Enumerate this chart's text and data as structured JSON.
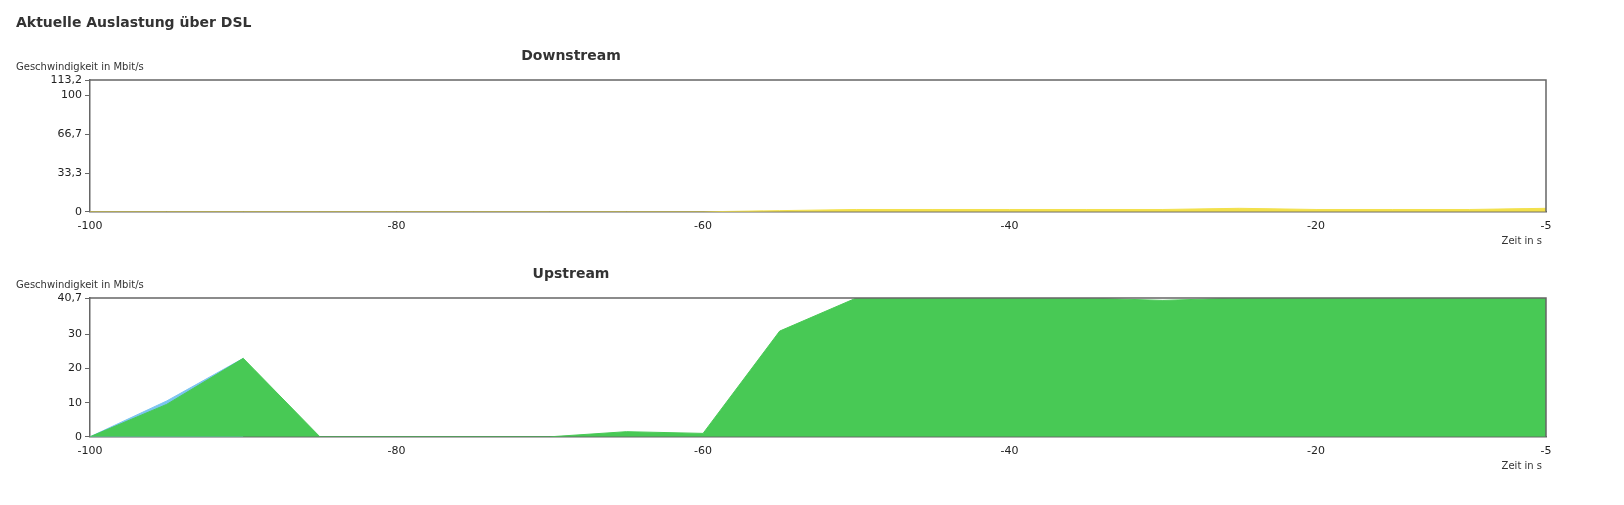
{
  "chart_data": [
    {
      "type": "area",
      "title": "Downstream",
      "annotations": [
        "Aktuelle Auslastung über DSL"
      ],
      "ylabel": "Geschwindigkeit in Mbit/s",
      "xlabel": "Zeit in s",
      "x": [
        -100,
        -95,
        -90,
        -85,
        -80,
        -75,
        -70,
        -65,
        -60,
        -55,
        -50,
        -45,
        -40,
        -35,
        -30,
        -25,
        -20,
        -15,
        -10,
        -5
      ],
      "series": [
        {
          "color": "#f2e04c",
          "values": [
            0,
            0,
            0,
            0,
            0,
            0,
            0,
            0,
            0,
            1,
            2,
            2,
            2,
            2,
            2,
            3,
            2,
            2,
            2,
            3
          ]
        }
      ],
      "xlim": [
        -100,
        -5
      ],
      "xticks": [
        -100,
        -80,
        -60,
        -40,
        -20,
        -5
      ],
      "ylim": [
        0,
        113.2
      ],
      "yticks": [
        0,
        {
          "value": 33.3,
          "label": "33,3"
        },
        {
          "value": 66.7,
          "label": "66,7"
        },
        100,
        {
          "value": 113.2,
          "label": "113,2"
        }
      ]
    },
    {
      "type": "area",
      "title": "Upstream",
      "ylabel": "Geschwindigkeit in Mbit/s",
      "xlabel": "Zeit in s",
      "x": [
        -100,
        -95,
        -90,
        -85,
        -80,
        -75,
        -70,
        -65,
        -60,
        -55,
        -50,
        -45,
        -40,
        -35,
        -30,
        -25,
        -20,
        -15,
        -10,
        -5
      ],
      "series": [
        {
          "color": "#48c955",
          "values": [
            0,
            9.5,
            23,
            0,
            0,
            0,
            0,
            1.5,
            1,
            31,
            40.7,
            40.7,
            40.7,
            40.7,
            40,
            40.7,
            40.7,
            40.7,
            40.7,
            40.7
          ]
        },
        {
          "color": "#7cc4f0",
          "values": [
            0,
            10.5,
            23,
            null,
            null,
            null,
            null,
            null,
            null,
            null,
            null,
            null,
            null,
            null,
            null,
            null,
            null,
            null,
            null,
            null
          ]
        }
      ],
      "xlim": [
        -100,
        -5
      ],
      "xticks": [
        -100,
        -80,
        -60,
        -40,
        -20,
        -5
      ],
      "ylim": [
        0,
        40.7
      ],
      "yticks": [
        0,
        10,
        20,
        30,
        {
          "value": 40.7,
          "label": "40,7"
        }
      ]
    }
  ]
}
